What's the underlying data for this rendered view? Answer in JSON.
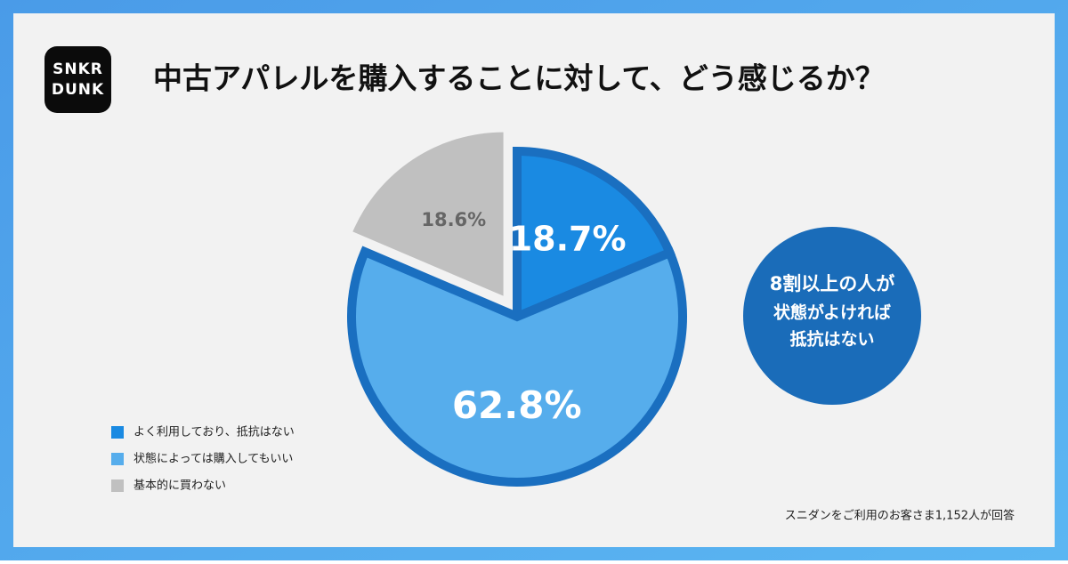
{
  "logo": [
    "SNKR",
    "DUNK"
  ],
  "chart_data": {
    "type": "pie",
    "title": "中古アパレルを購入することに対して、どう感じるか？",
    "categories": [
      "よく利用しており、抵抗はない",
      "状態によっては購入してもいい",
      "基本的に買わない"
    ],
    "values": [
      18.7,
      62.8,
      18.6
    ],
    "value_labels": [
      "18.7%",
      "62.8%",
      "18.6%"
    ],
    "colors": [
      "#1a8ae2",
      "#56adec",
      "#c0c0c0"
    ],
    "exploded": [
      false,
      false,
      true
    ],
    "legend": "bottom-left",
    "callout": [
      "8割以上の人が",
      "状態がよければ",
      "抵抗はない"
    ],
    "source": "スニダンをご利用のお客さま1,152人が回答"
  }
}
